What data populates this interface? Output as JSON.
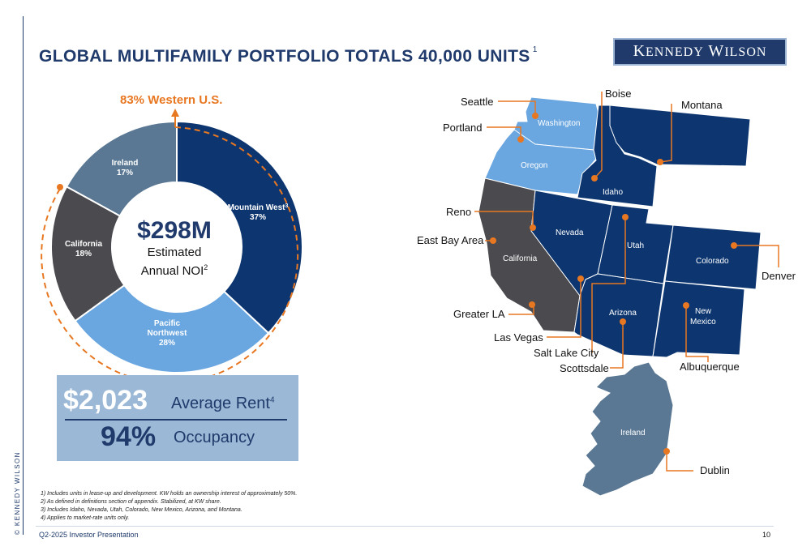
{
  "header": {
    "title": "GLOBAL MULTIFAMILY PORTFOLIO TOTALS 40,000 UNITS",
    "title_sup": "1",
    "logo_first": "K",
    "logo_first_rest": "ENNEDY",
    "logo_second": "W",
    "logo_second_rest": "ILSON"
  },
  "side_brand": "© KENNEDY WILSON",
  "chart_data": {
    "type": "pie",
    "donut": true,
    "callout": "83% Western U.S.",
    "center_value": "$298M",
    "center_label_line1": "Estimated",
    "center_label_line2": "Annual NOI",
    "center_label_sup": "2",
    "slices": [
      {
        "name": "Mountain West",
        "sup": "3",
        "value": 37,
        "label": "37%",
        "color": "#0d3670"
      },
      {
        "name": "Pacific Northwest",
        "value": 28,
        "label": "28%",
        "color": "#6aa6e0"
      },
      {
        "name": "California",
        "value": 18,
        "label": "18%",
        "color": "#4a4a4f"
      },
      {
        "name": "Ireland",
        "value": 17,
        "label": "17%",
        "color": "#5a7893"
      }
    ]
  },
  "stats": {
    "rent_value": "$2,023",
    "rent_label": "Average Rent",
    "rent_sup": "4",
    "occupancy_value": "94%",
    "occupancy_label": "Occupancy"
  },
  "map": {
    "colors": {
      "pacific": "#6aa6e0",
      "mountain": "#0d3670",
      "california": "#4a4a4f",
      "ireland": "#5a7893",
      "marker": "#e87722"
    },
    "states": {
      "washington": "Washington",
      "oregon": "Oregon",
      "idaho": "Idaho",
      "montana": "Montana",
      "california": "California",
      "nevada": "Nevada",
      "utah": "Utah",
      "colorado": "Colorado",
      "arizona": "Arizona",
      "new_mexico_1": "New",
      "new_mexico_2": "Mexico",
      "ireland": "Ireland"
    },
    "cities": {
      "seattle": "Seattle",
      "portland": "Portland",
      "boise": "Boise",
      "montana": "Montana",
      "reno": "Reno",
      "east_bay": "East Bay Area",
      "denver": "Denver",
      "greater_la": "Greater LA",
      "las_vegas": "Las Vegas",
      "salt_lake_city": "Salt Lake City",
      "scottsdale": "Scottsdale",
      "albuquerque": "Albuquerque",
      "dublin": "Dublin"
    }
  },
  "footnotes": [
    "1) Includes units in lease-up and development. KW holds an ownership interest of approximately 50%.",
    "2) As defined in definitions section of appendix. Stabilized, at KW share.",
    "3) Includes Idaho, Nevada, Utah, Colorado, New Mexico, Arizona, and Montana.",
    "4) Applies to market-rate units only."
  ],
  "footer": {
    "left": "Q2-2025 Investor Presentation",
    "page": "10"
  }
}
